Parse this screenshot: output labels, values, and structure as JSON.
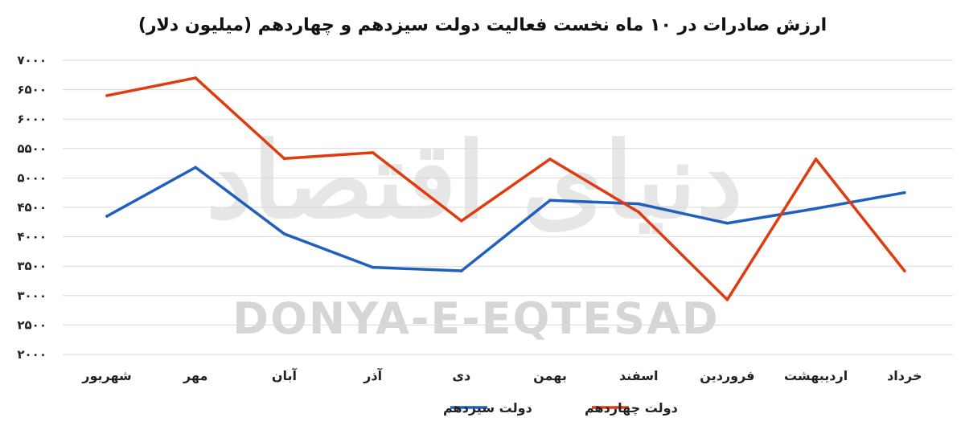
{
  "watermark": {
    "latin": "DONYA-E-EQTESAD",
    "persian": "دنیای اقتصاد"
  },
  "chart_data": {
    "type": "line",
    "title": "ارزش صادرات در ۱۰ ماه نخست فعالیت دولت سیزدهم و چهاردهم (میلیون دلار)",
    "xlabel": "",
    "ylabel": "",
    "direction": "rtl",
    "categories": [
      "شهریور",
      "مهر",
      "آبان",
      "آذر",
      "دی",
      "بهمن",
      "اسفند",
      "فروردین",
      "اردیبهشت",
      "خرداد"
    ],
    "ylim": [
      2000,
      7000
    ],
    "yticks": [
      2000,
      2500,
      3000,
      3500,
      4000,
      4500,
      5000,
      5500,
      6000,
      6500,
      7000
    ],
    "ytick_labels": [
      "۲۰۰۰",
      "۲۵۰۰",
      "۳۰۰۰",
      "۳۵۰۰",
      "۴۰۰۰",
      "۴۵۰۰",
      "۵۰۰۰",
      "۵۵۰۰",
      "۶۰۰۰",
      "۶۵۰۰",
      "۷۰۰۰"
    ],
    "grid": true,
    "legend_position": "bottom",
    "series": [
      {
        "name": "دولت سیزدهم",
        "color": "#1f5fbf",
        "values": [
          4350,
          5180,
          4050,
          3480,
          3420,
          4620,
          4560,
          4230,
          4480,
          4750
        ]
      },
      {
        "name": "دولت چهاردهم",
        "color": "#e03a0e",
        "values": [
          6400,
          6700,
          5330,
          5430,
          4270,
          5320,
          4420,
          2930,
          5320,
          3420
        ]
      }
    ]
  }
}
